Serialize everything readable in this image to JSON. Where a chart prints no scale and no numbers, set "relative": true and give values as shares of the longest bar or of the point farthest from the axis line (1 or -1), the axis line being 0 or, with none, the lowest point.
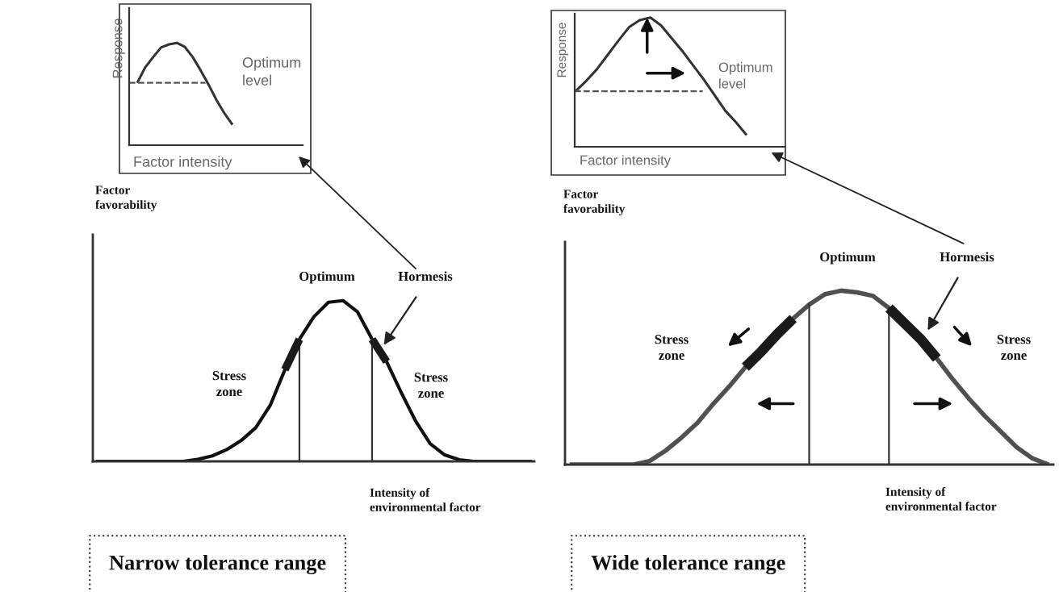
{
  "chart_data": [
    {
      "type": "line",
      "relative": true,
      "xlabel": "Factor intensity",
      "ylabel": "Response",
      "categories": [
        null,
        null,
        null,
        null,
        null,
        null,
        null,
        null,
        null,
        null,
        null,
        null,
        null
      ],
      "series": [
        {
          "color": "#333333",
          "values": [
            0.61,
            0.76,
            0.86,
            0.955,
            0.985,
            1.0,
            0.96,
            0.86,
            0.73,
            0.59,
            0.44,
            0.31,
            0.2
          ]
        }
      ],
      "ref_lines": [
        {
          "axis": "y",
          "value": 0.61,
          "color": "#555555",
          "line_style": "dashed"
        }
      ],
      "annotations": [
        "Optimum\nlevel"
      ]
    },
    {
      "type": "line",
      "relative": true,
      "xlabel": "Factor intensity",
      "ylabel": "Response",
      "categories": [
        null,
        null,
        null,
        null,
        null,
        null,
        null,
        null,
        null,
        null,
        null,
        null,
        null,
        null,
        null,
        null,
        null
      ],
      "series": [
        {
          "color": "#333333",
          "values": [
            0.43,
            0.51,
            0.6,
            0.71,
            0.82,
            0.925,
            0.98,
            1.0,
            0.94,
            0.84,
            0.74,
            0.63,
            0.52,
            0.4,
            0.28,
            0.19,
            0.09
          ]
        }
      ],
      "ref_lines": [
        {
          "axis": "y",
          "value": 0.43,
          "color": "#555555",
          "line_style": "dashed"
        }
      ],
      "annotations": [
        "Optimum\nlevel"
      ]
    },
    {
      "type": "line",
      "relative": true,
      "title": "Narrow tolerance range",
      "xlabel": "Intensity of\nenvironmental factor",
      "ylabel": "Factor\nfavorability",
      "categories": [
        null,
        null,
        null,
        null,
        null,
        null,
        null,
        null,
        null,
        null,
        null,
        null,
        null,
        null,
        null,
        null,
        null,
        null,
        null,
        null,
        null,
        null,
        null,
        null,
        null,
        null,
        null,
        null,
        null,
        null,
        null
      ],
      "series": [
        {
          "color": "#111111",
          "values": [
            0,
            0,
            0,
            0,
            0,
            0,
            0,
            0.012,
            0.034,
            0.073,
            0.13,
            0.21,
            0.35,
            0.57,
            0.76,
            0.9,
            0.99,
            1.0,
            0.93,
            0.76,
            0.62,
            0.43,
            0.25,
            0.11,
            0.04,
            0.01,
            0,
            0,
            0,
            0,
            0
          ]
        }
      ],
      "annotations": [
        "Optimum",
        "Hormesis",
        "Stress\nzone",
        "Stress\nzone"
      ]
    },
    {
      "type": "line",
      "relative": true,
      "title": "Wide tolerance range",
      "xlabel": "Intensity of\nenvironmental factor",
      "ylabel": "Factor\nfavorability",
      "categories": [
        null,
        null,
        null,
        null,
        null,
        null,
        null,
        null,
        null,
        null,
        null,
        null,
        null,
        null,
        null,
        null,
        null,
        null,
        null,
        null,
        null,
        null,
        null,
        null,
        null,
        null,
        null,
        null,
        null,
        null,
        null
      ],
      "series": [
        {
          "color": "#505050",
          "values": [
            0,
            0,
            0,
            0,
            0,
            0.02,
            0.08,
            0.155,
            0.24,
            0.35,
            0.45,
            0.56,
            0.65,
            0.75,
            0.84,
            0.92,
            0.98,
            1.0,
            0.99,
            0.97,
            0.9,
            0.81,
            0.72,
            0.61,
            0.49,
            0.38,
            0.28,
            0.19,
            0.1,
            0.035,
            0
          ]
        }
      ],
      "annotations": [
        "Optimum",
        "Hormesis",
        "Stress\nzone",
        "Stress\nzone"
      ]
    }
  ]
}
